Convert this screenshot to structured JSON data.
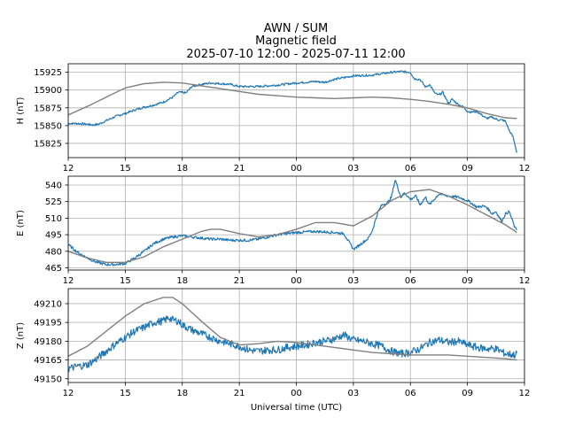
{
  "title_lines": [
    "AWN / SUM",
    "Magnetic field",
    "2025-07-10 12:00 - 2025-07-11 12:00"
  ],
  "colors": {
    "observed": "#1f77b4",
    "model": "#808080"
  },
  "chart_data": [
    {
      "type": "line",
      "ylabel": "H (nT)",
      "xlabel": "",
      "xlim": [
        0,
        24
      ],
      "ylim": [
        15805,
        15937
      ],
      "x_ticks": [
        0,
        3,
        6,
        9,
        12,
        15,
        18,
        21,
        24
      ],
      "x_tick_labels": [
        "12",
        "15",
        "18",
        "21",
        "00",
        "03",
        "06",
        "09",
        "12"
      ],
      "y_ticks": [
        15825,
        15850,
        15875,
        15900,
        15925
      ],
      "y_tick_labels": [
        "15825",
        "15850",
        "15875",
        "15900",
        "15925"
      ],
      "series": [
        {
          "name": "observed",
          "noise": 1.5,
          "x": [
            0,
            0.5,
            1,
            1.3,
            1.6,
            2,
            2.5,
            3,
            3.5,
            4,
            4.5,
            5,
            5.5,
            5.8,
            6.2,
            6.5,
            7,
            7.5,
            8,
            8.5,
            9,
            10,
            11,
            12,
            13,
            13.5,
            14,
            15,
            16,
            17,
            17.5,
            18,
            18.2,
            18.5,
            18.8,
            19,
            19.3,
            19.5,
            19.7,
            20,
            20.2,
            20.5,
            20.8,
            21,
            21.2,
            21.5,
            21.8,
            22,
            22.3,
            22.6,
            22.8,
            23,
            23.2,
            23.4,
            23.6
          ],
          "values": [
            15853,
            15853,
            15852,
            15851,
            15852,
            15857,
            15863,
            15867,
            15872,
            15876,
            15879,
            15883,
            15890,
            15897,
            15896,
            15905,
            15908,
            15910,
            15909,
            15908,
            15905,
            15905,
            15907,
            15910,
            15912,
            15911,
            15915,
            15920,
            15921,
            15925,
            15926,
            15925,
            15916,
            15915,
            15904,
            15908,
            15895,
            15893,
            15897,
            15881,
            15887,
            15880,
            15876,
            15870,
            15869,
            15870,
            15864,
            15860,
            15862,
            15858,
            15858,
            15856,
            15843,
            15834,
            15812
          ]
        },
        {
          "name": "model",
          "noise": 0,
          "x": [
            0,
            1,
            2,
            3,
            4,
            5,
            6,
            7,
            8,
            9,
            10,
            11,
            12,
            13,
            14,
            15,
            16,
            17,
            18,
            19,
            20,
            21,
            22,
            23,
            23.6
          ],
          "values": [
            15865,
            15877,
            15890,
            15903,
            15909,
            15911,
            15910,
            15906,
            15902,
            15898,
            15894,
            15892,
            15890,
            15889,
            15888,
            15889,
            15890,
            15889,
            15887,
            15884,
            15880,
            15875,
            15867,
            15861,
            15860
          ]
        }
      ]
    },
    {
      "type": "line",
      "ylabel": "E (nT)",
      "xlabel": "",
      "xlim": [
        0,
        24
      ],
      "ylim": [
        463,
        548
      ],
      "x_ticks": [
        0,
        3,
        6,
        9,
        12,
        15,
        18,
        21,
        24
      ],
      "x_tick_labels": [
        "12",
        "15",
        "18",
        "21",
        "00",
        "03",
        "06",
        "09",
        "12"
      ],
      "y_ticks": [
        465,
        480,
        495,
        510,
        525,
        540
      ],
      "y_tick_labels": [
        "465",
        "480",
        "495",
        "510",
        "525",
        "540"
      ],
      "series": [
        {
          "name": "observed",
          "noise": 1.2,
          "x": [
            0,
            0.5,
            1,
            1.5,
            2,
            2.5,
            3,
            3.5,
            4,
            4.5,
            5,
            5.5,
            6,
            6.5,
            7,
            7.5,
            8,
            8.5,
            9,
            9.5,
            10,
            10.5,
            11,
            11.5,
            12,
            13,
            14,
            14.5,
            15,
            15.2,
            15.5,
            15.8,
            16,
            16.3,
            16.5,
            16.8,
            17,
            17.2,
            17.5,
            17.7,
            18,
            18.3,
            18.5,
            18.8,
            19,
            19.5,
            20,
            20.5,
            21,
            21.5,
            21.8,
            22,
            22.3,
            22.5,
            22.8,
            23,
            23.2,
            23.5,
            23.6
          ],
          "values": [
            486,
            479,
            474,
            470,
            468,
            468,
            469,
            474,
            480,
            487,
            491,
            493,
            494,
            493,
            492,
            491,
            491,
            490,
            490,
            490,
            491,
            493,
            495,
            496,
            497,
            498,
            497,
            496,
            482,
            484,
            488,
            492,
            499,
            516,
            522,
            524,
            529,
            545,
            529,
            533,
            527,
            530,
            522,
            529,
            522,
            532,
            530,
            529,
            526,
            520,
            521,
            520,
            514,
            516,
            507,
            514,
            516,
            501,
            500
          ]
        },
        {
          "name": "model",
          "noise": 0,
          "x": [
            0,
            1,
            2,
            3,
            4,
            5,
            6,
            7,
            7.5,
            8,
            9,
            10,
            11,
            12,
            13,
            14,
            15,
            16,
            17,
            18,
            19,
            20,
            21,
            22,
            23,
            23.6
          ],
          "values": [
            480,
            474,
            470,
            470,
            475,
            484,
            491,
            498,
            500,
            500,
            496,
            493,
            495,
            500,
            506,
            506,
            503,
            512,
            526,
            534,
            536,
            530,
            522,
            513,
            504,
            497
          ]
        }
      ]
    },
    {
      "type": "line",
      "ylabel": "Z (nT)",
      "xlabel": "Universal time (UTC)",
      "xlim": [
        0,
        24
      ],
      "ylim": [
        49147,
        49222
      ],
      "x_ticks": [
        0,
        3,
        6,
        9,
        12,
        15,
        18,
        21,
        24
      ],
      "x_tick_labels": [
        "12",
        "15",
        "18",
        "21",
        "00",
        "03",
        "06",
        "09",
        "12"
      ],
      "y_ticks": [
        49150,
        49165,
        49180,
        49195,
        49210
      ],
      "y_tick_labels": [
        "49150",
        "49165",
        "49180",
        "49195",
        "49210"
      ],
      "series": [
        {
          "name": "observed",
          "noise": 3,
          "x": [
            0,
            0.5,
            1,
            1.5,
            2,
            2.5,
            3,
            3.5,
            4,
            4.5,
            5,
            5.3,
            5.5,
            5.8,
            6,
            6.5,
            7,
            7.5,
            8,
            8.5,
            9,
            9.5,
            10,
            10.5,
            11,
            11.5,
            12,
            12.5,
            13,
            13.5,
            14,
            14.5,
            15,
            15.5,
            16,
            16.5,
            17,
            17.5,
            18,
            18.5,
            19,
            19.5,
            20,
            20.5,
            21,
            21.5,
            22,
            22.5,
            23,
            23.5,
            23.6
          ],
          "values": [
            49158,
            49160,
            49161,
            49166,
            49172,
            49178,
            49183,
            49188,
            49191,
            49195,
            49196,
            49199,
            49197,
            49196,
            49193,
            49189,
            49186,
            49183,
            49180,
            49178,
            49176,
            49173,
            49172,
            49173,
            49173,
            49175,
            49176,
            49177,
            49179,
            49180,
            49182,
            49185,
            49181,
            49180,
            49178,
            49176,
            49172,
            49170,
            49171,
            49174,
            49179,
            49181,
            49179,
            49180,
            49177,
            49175,
            49174,
            49174,
            49170,
            49169,
            49170
          ]
        },
        {
          "name": "model",
          "noise": 0,
          "x": [
            0,
            1,
            2,
            3,
            4,
            5,
            5.5,
            6,
            7,
            8,
            9,
            10,
            11,
            12,
            13,
            14,
            15,
            16,
            17,
            18,
            19,
            20,
            21,
            22,
            23,
            23.6
          ],
          "values": [
            49168,
            49176,
            49188,
            49200,
            49210,
            49215,
            49215,
            49210,
            49196,
            49183,
            49177,
            49178,
            49180,
            49179,
            49177,
            49175,
            49173,
            49171,
            49170,
            49169,
            49169,
            49169,
            49168,
            49167,
            49166,
            49165
          ]
        }
      ]
    }
  ]
}
